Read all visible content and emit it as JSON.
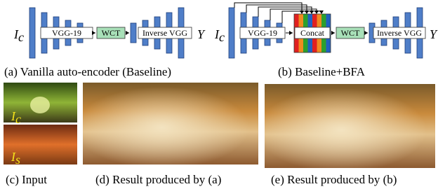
{
  "diagram_a": {
    "input": {
      "main": "I",
      "sub": "c"
    },
    "encoder": "VGG-19",
    "transform": "WCT",
    "decoder": "Inverse VGG",
    "output": "Y",
    "caption": "(a) Vanilla auto-encoder (Baseline)"
  },
  "diagram_b": {
    "input": {
      "main": "I",
      "sub": "c"
    },
    "encoder": "VGG-19",
    "concat": "Concat",
    "transform": "WCT",
    "decoder": "Inverse VGG",
    "output": "Y",
    "caption": "(b) Baseline+BFA"
  },
  "images": {
    "content_label": {
      "main": "I",
      "sub": "c"
    },
    "style_label": {
      "main": "I",
      "sub": "s"
    },
    "caption_c": "(c) Input",
    "caption_d": "(d) Result produced by (a)",
    "caption_e": "(e) Result produced by (b)"
  }
}
